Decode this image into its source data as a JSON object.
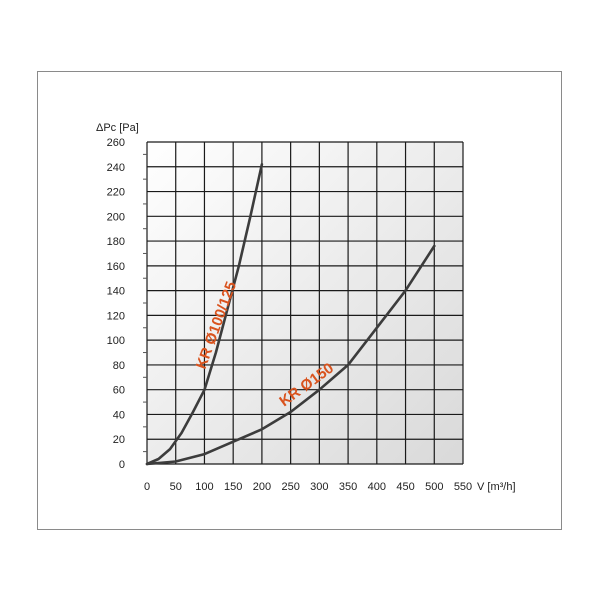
{
  "chart_data": {
    "type": "line",
    "title": "",
    "xlabel": "V [m³/h]",
    "ylabel": "ΔPc [Pa]",
    "xlim": [
      0,
      550
    ],
    "ylim": [
      0,
      260
    ],
    "x_ticks": [
      "0",
      "50",
      "100",
      "150",
      "200",
      "250",
      "300",
      "350",
      "400",
      "450",
      "500",
      "550"
    ],
    "y_ticks": [
      "0",
      "20",
      "40",
      "60",
      "80",
      "100",
      "120",
      "140",
      "160",
      "180",
      "200",
      "220",
      "240",
      "260"
    ],
    "grid": true,
    "label_color": "#d9531e",
    "line_color": "#3c3c3c",
    "series": [
      {
        "name": "KR Ø100/125",
        "x": [
          0,
          20,
          40,
          60,
          80,
          100,
          120,
          140,
          160,
          180,
          200
        ],
        "y": [
          0,
          4,
          12,
          25,
          42,
          60,
          90,
          125,
          160,
          200,
          242
        ]
      },
      {
        "name": "KR Ø150",
        "x": [
          0,
          50,
          100,
          150,
          200,
          250,
          300,
          350,
          400,
          450,
          500
        ],
        "y": [
          0,
          2,
          8,
          18,
          28,
          42,
          60,
          80,
          110,
          140,
          176
        ]
      }
    ]
  }
}
